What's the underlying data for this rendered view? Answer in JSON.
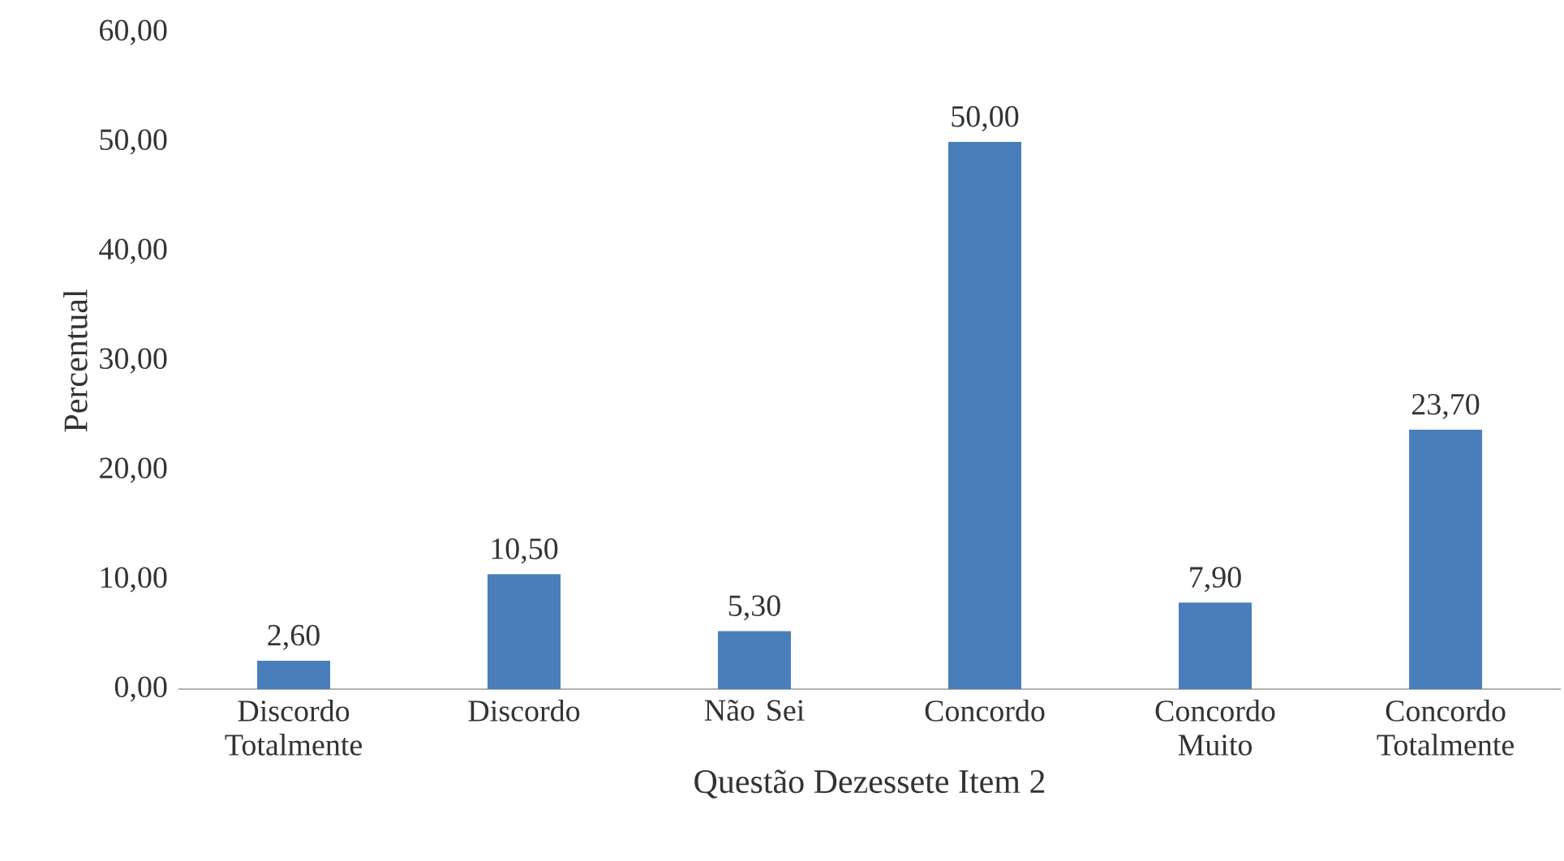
{
  "chart_data": {
    "type": "bar",
    "xlabel": "Questão Dezessete Item 2",
    "ylabel": "Percentual",
    "categories": [
      "Discordo Totalmente",
      "Discordo",
      "Não Sei",
      "Concordo",
      "Concordo Muito",
      "Concordo Totalmente"
    ],
    "values": [
      2.6,
      10.5,
      5.3,
      50.0,
      7.9,
      23.7
    ],
    "value_labels": [
      "2,60",
      "10,50",
      "5,30",
      "50,00",
      "7,90",
      "23,70"
    ],
    "color": "#4a7ebb",
    "ylim": [
      0,
      60
    ],
    "yticks": [
      {
        "value": 0,
        "label": "0,00"
      },
      {
        "value": 10,
        "label": "10,00"
      },
      {
        "value": 20,
        "label": "20,00"
      },
      {
        "value": 30,
        "label": "30,00"
      },
      {
        "value": 40,
        "label": "40,00"
      },
      {
        "value": 50,
        "label": "50,00"
      },
      {
        "value": 60,
        "label": "60,00"
      }
    ]
  }
}
